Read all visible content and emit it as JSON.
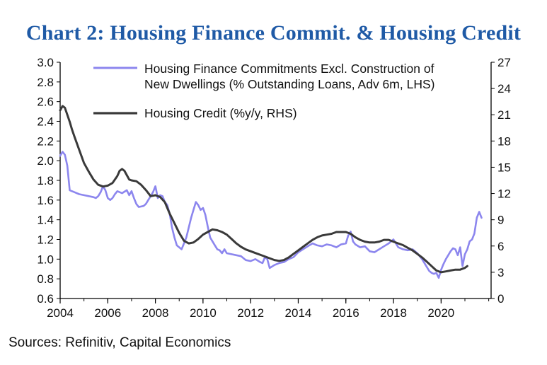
{
  "title": "Chart 2: Housing Finance Commit. & Housing Credit",
  "source": "Sources: Refinitiv, Capital Economics",
  "colors": {
    "title": "#1f5aa6",
    "series_lhs": "#8c86ee",
    "series_rhs": "#3a3a3a",
    "axis": "#000000",
    "text": "#111111"
  },
  "chart_data": {
    "type": "line",
    "title": "Chart 2: Housing Finance Commit. & Housing Credit",
    "xlabel": "",
    "ylabel_left": "",
    "ylabel_right": "",
    "x_range": [
      2004,
      2022.1
    ],
    "ylim_left": [
      0.6,
      3.0
    ],
    "ylim_right": [
      0,
      27
    ],
    "xticks": [
      "2004",
      "2006",
      "2008",
      "2010",
      "2012",
      "2014",
      "2016",
      "2018",
      "2020"
    ],
    "xtick_values": [
      2004,
      2006,
      2008,
      2010,
      2012,
      2014,
      2016,
      2018,
      2020
    ],
    "yticks_left": [
      "0.6",
      "0.8",
      "1.0",
      "1.2",
      "1.4",
      "1.6",
      "1.8",
      "2.0",
      "2.2",
      "2.4",
      "2.6",
      "2.8",
      "3.0"
    ],
    "yticks_left_values": [
      0.6,
      0.8,
      1.0,
      1.2,
      1.4,
      1.6,
      1.8,
      2.0,
      2.2,
      2.4,
      2.6,
      2.8,
      3.0
    ],
    "yticks_right": [
      "0",
      "3",
      "6",
      "9",
      "12",
      "15",
      "18",
      "21",
      "24",
      "27"
    ],
    "yticks_right_values": [
      0,
      3,
      6,
      9,
      12,
      15,
      18,
      21,
      24,
      27
    ],
    "grid": false,
    "legend_position": "top",
    "series": [
      {
        "name": "Housing Finance Commitments Excl. Construction of New Dwellings (% Outstanding Loans, Adv 6m, LHS)",
        "legend_lines": [
          "Housing Finance Commitments Excl. Construction of",
          "New Dwellings (% Outstanding Loans, Adv 6m, LHS)"
        ],
        "axis": "left",
        "x": [
          2004.0,
          2004.1,
          2004.2,
          2004.3,
          2004.4,
          2004.5,
          2004.6,
          2004.8,
          2005.0,
          2005.2,
          2005.4,
          2005.5,
          2005.6,
          2005.7,
          2005.8,
          2005.9,
          2006.0,
          2006.1,
          2006.2,
          2006.3,
          2006.4,
          2006.6,
          2006.8,
          2006.9,
          2007.0,
          2007.1,
          2007.2,
          2007.3,
          2007.5,
          2007.6,
          2007.7,
          2007.8,
          2007.9,
          2008.0,
          2008.1,
          2008.2,
          2008.3,
          2008.4,
          2008.5,
          2008.6,
          2008.7,
          2008.8,
          2008.9,
          2009.0,
          2009.1,
          2009.2,
          2009.3,
          2009.4,
          2009.5,
          2009.6,
          2009.7,
          2009.8,
          2009.9,
          2010.0,
          2010.1,
          2010.2,
          2010.3,
          2010.4,
          2010.5,
          2010.6,
          2010.7,
          2010.8,
          2010.9,
          2011.0,
          2011.2,
          2011.4,
          2011.6,
          2011.8,
          2012.0,
          2012.2,
          2012.4,
          2012.5,
          2012.6,
          2012.7,
          2012.8,
          2013.0,
          2013.2,
          2013.4,
          2013.6,
          2013.8,
          2014.0,
          2014.2,
          2014.4,
          2014.6,
          2014.8,
          2015.0,
          2015.2,
          2015.4,
          2015.6,
          2015.8,
          2016.0,
          2016.1,
          2016.2,
          2016.3,
          2016.4,
          2016.6,
          2016.8,
          2017.0,
          2017.2,
          2017.4,
          2017.6,
          2017.8,
          2018.0,
          2018.2,
          2018.4,
          2018.6,
          2018.8,
          2019.0,
          2019.2,
          2019.4,
          2019.5,
          2019.6,
          2019.7,
          2019.8,
          2019.9,
          2020.0,
          2020.1,
          2020.2,
          2020.3,
          2020.4,
          2020.5,
          2020.6,
          2020.7,
          2020.8,
          2020.9,
          2021.0,
          2021.1,
          2021.2,
          2021.3,
          2021.4,
          2021.5,
          2021.6,
          2021.7
        ],
        "values": [
          2.05,
          2.09,
          2.06,
          1.95,
          1.7,
          1.69,
          1.68,
          1.66,
          1.65,
          1.64,
          1.63,
          1.62,
          1.64,
          1.68,
          1.74,
          1.7,
          1.62,
          1.6,
          1.62,
          1.66,
          1.69,
          1.67,
          1.7,
          1.65,
          1.69,
          1.62,
          1.56,
          1.53,
          1.54,
          1.56,
          1.6,
          1.64,
          1.68,
          1.74,
          1.62,
          1.65,
          1.64,
          1.58,
          1.55,
          1.46,
          1.32,
          1.22,
          1.14,
          1.12,
          1.1,
          1.16,
          1.22,
          1.32,
          1.42,
          1.5,
          1.58,
          1.55,
          1.5,
          1.52,
          1.45,
          1.33,
          1.22,
          1.18,
          1.14,
          1.1,
          1.09,
          1.06,
          1.1,
          1.06,
          1.05,
          1.04,
          1.03,
          0.99,
          0.98,
          1.0,
          0.97,
          0.96,
          1.02,
          1.0,
          0.91,
          0.94,
          0.96,
          0.97,
          1.0,
          1.02,
          1.07,
          1.1,
          1.13,
          1.16,
          1.14,
          1.13,
          1.15,
          1.14,
          1.12,
          1.15,
          1.16,
          1.24,
          1.28,
          1.18,
          1.15,
          1.12,
          1.13,
          1.08,
          1.07,
          1.1,
          1.13,
          1.16,
          1.2,
          1.12,
          1.1,
          1.09,
          1.1,
          1.06,
          1.0,
          0.92,
          0.88,
          0.86,
          0.85,
          0.86,
          0.81,
          0.89,
          0.95,
          1.0,
          1.04,
          1.08,
          1.11,
          1.1,
          1.04,
          1.12,
          0.93,
          1.05,
          1.1,
          1.18,
          1.2,
          1.26,
          1.42,
          1.48,
          1.42
        ],
        "color": "#8c86ee"
      },
      {
        "name": "Housing Credit (%y/y, RHS)",
        "legend_lines": [
          "Housing Credit (%y/y, RHS)"
        ],
        "axis": "right",
        "x": [
          2004.0,
          2004.1,
          2004.2,
          2004.3,
          2004.4,
          2004.5,
          2004.6,
          2004.8,
          2005.0,
          2005.2,
          2005.4,
          2005.6,
          2005.8,
          2006.0,
          2006.2,
          2006.4,
          2006.5,
          2006.6,
          2006.7,
          2006.8,
          2006.9,
          2007.0,
          2007.2,
          2007.4,
          2007.6,
          2007.8,
          2008.0,
          2008.2,
          2008.4,
          2008.6,
          2008.8,
          2009.0,
          2009.2,
          2009.4,
          2009.6,
          2009.8,
          2010.0,
          2010.2,
          2010.4,
          2010.6,
          2010.8,
          2011.0,
          2011.2,
          2011.4,
          2011.6,
          2011.8,
          2012.0,
          2012.2,
          2012.4,
          2012.6,
          2012.8,
          2013.0,
          2013.2,
          2013.4,
          2013.6,
          2013.8,
          2014.0,
          2014.2,
          2014.4,
          2014.6,
          2014.8,
          2015.0,
          2015.2,
          2015.4,
          2015.6,
          2015.8,
          2016.0,
          2016.2,
          2016.4,
          2016.6,
          2016.8,
          2017.0,
          2017.2,
          2017.4,
          2017.6,
          2017.8,
          2018.0,
          2018.2,
          2018.4,
          2018.6,
          2018.8,
          2019.0,
          2019.2,
          2019.4,
          2019.6,
          2019.8,
          2020.0,
          2020.2,
          2020.4,
          2020.6,
          2020.8,
          2021.0,
          2021.1
        ],
        "values": [
          21.5,
          22.0,
          21.8,
          21.0,
          20.2,
          19.3,
          18.5,
          17.0,
          15.5,
          14.5,
          13.6,
          13.0,
          12.8,
          12.9,
          13.2,
          14.0,
          14.6,
          14.8,
          14.6,
          14.1,
          13.6,
          13.5,
          13.4,
          13.0,
          12.4,
          11.7,
          11.8,
          11.6,
          11.0,
          9.7,
          8.6,
          7.5,
          6.6,
          6.3,
          6.4,
          6.8,
          7.3,
          7.6,
          7.9,
          7.8,
          7.6,
          7.3,
          6.8,
          6.3,
          5.9,
          5.6,
          5.4,
          5.2,
          5.0,
          4.8,
          4.6,
          4.4,
          4.3,
          4.4,
          4.7,
          5.1,
          5.5,
          5.9,
          6.3,
          6.7,
          7.0,
          7.2,
          7.3,
          7.4,
          7.6,
          7.6,
          7.6,
          7.4,
          7.0,
          6.7,
          6.5,
          6.4,
          6.4,
          6.5,
          6.7,
          6.7,
          6.5,
          6.3,
          6.1,
          5.8,
          5.5,
          5.1,
          4.7,
          4.2,
          3.7,
          3.2,
          3.0,
          3.1,
          3.2,
          3.3,
          3.3,
          3.5,
          3.7
        ],
        "color": "#3a3a3a"
      }
    ]
  }
}
